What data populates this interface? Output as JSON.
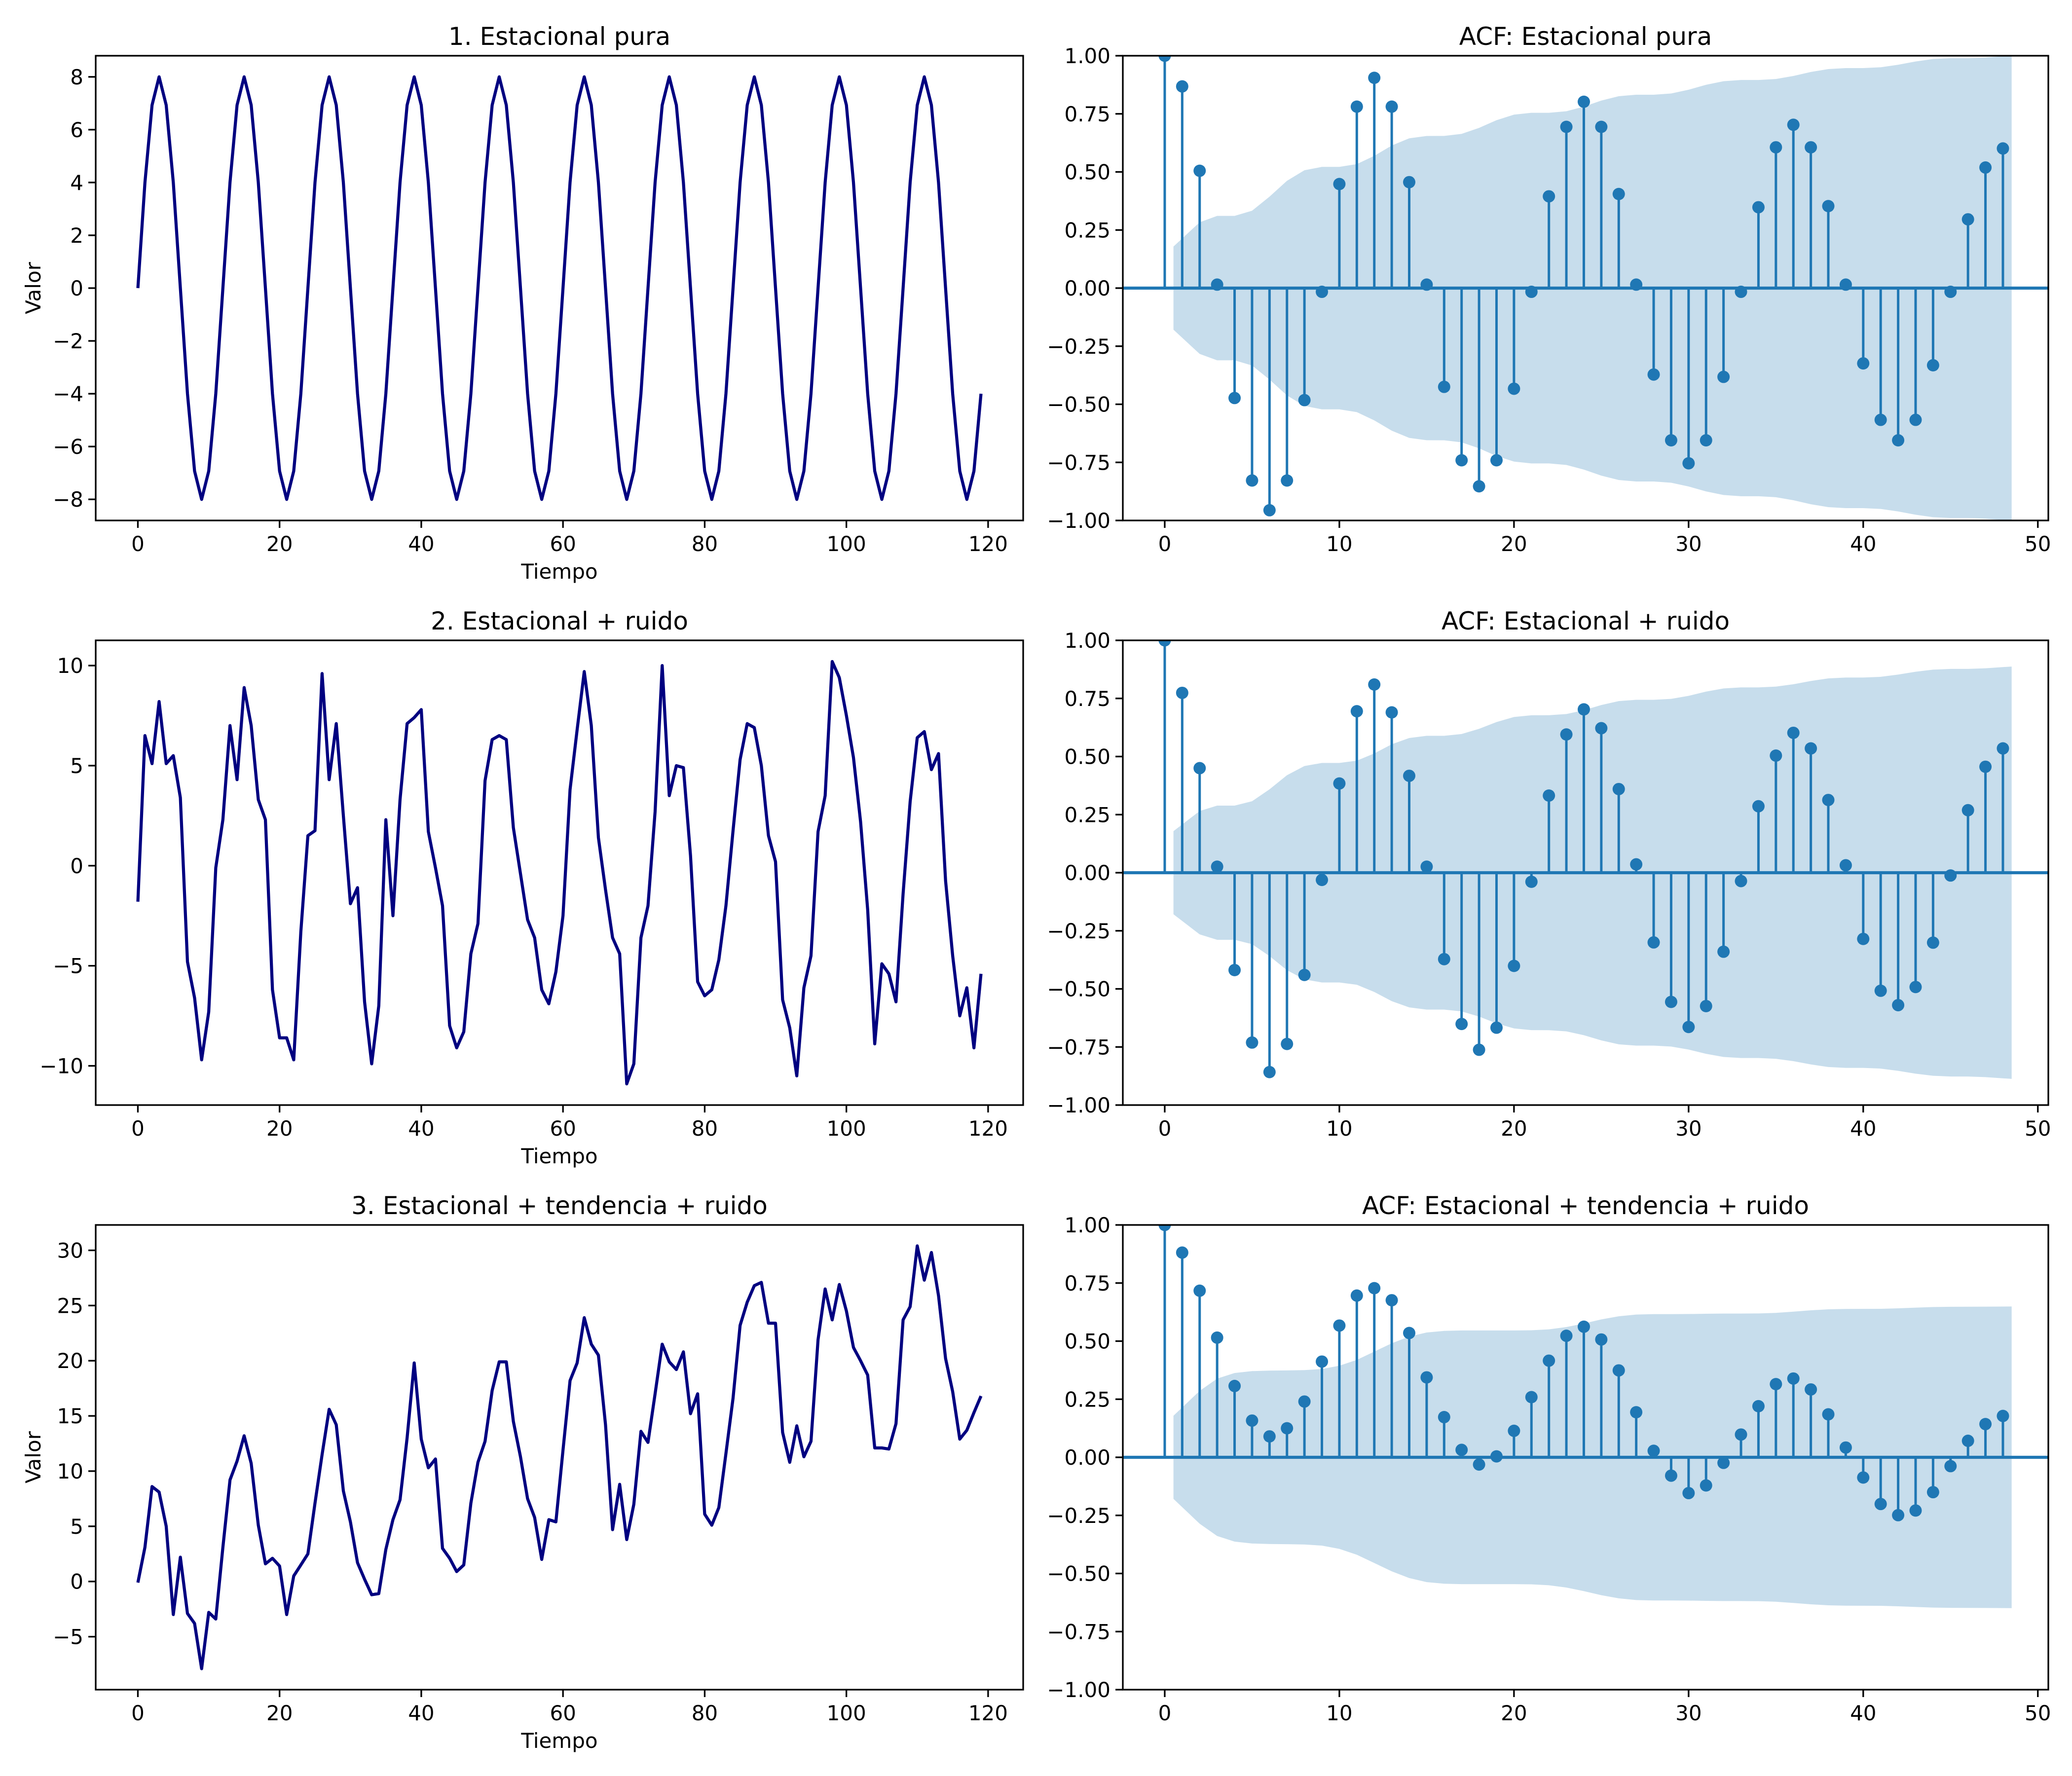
{
  "colors": {
    "series_line": "#000080",
    "acf": "#1f77b4",
    "band": "#1f77b4"
  },
  "chart_data": [
    {
      "type": "line",
      "title": "1. Estacional pura",
      "xlabel": "Tiempo",
      "ylabel": "Valor",
      "xlim": [
        -5.95,
        124.95
      ],
      "ylim": [
        -8.8,
        8.8
      ],
      "xticks": [
        0,
        20,
        40,
        60,
        80,
        100,
        120
      ],
      "xtick_labels": [
        "0",
        "20",
        "40",
        "60",
        "80",
        "100",
        "120"
      ],
      "yticks": [
        -8,
        -6,
        -4,
        -2,
        0,
        2,
        4,
        6,
        8
      ],
      "ytick_labels": [
        "−8",
        "−6",
        "−4",
        "−2",
        "0",
        "2",
        "4",
        "6",
        "8"
      ],
      "values": [
        0,
        4,
        6.93,
        8,
        6.93,
        4,
        0,
        -4,
        -6.93,
        -8,
        -6.93,
        -4,
        0,
        4,
        6.93,
        8,
        6.93,
        4,
        0,
        -4,
        -6.93,
        -8,
        -6.93,
        -4,
        0,
        4,
        6.93,
        8,
        6.93,
        4,
        0,
        -4,
        -6.93,
        -8,
        -6.93,
        -4,
        0,
        4,
        6.93,
        8,
        6.93,
        4,
        0,
        -4,
        -6.93,
        -8,
        -6.93,
        -4,
        0,
        4,
        6.93,
        8,
        6.93,
        4,
        0,
        -4,
        -6.93,
        -8,
        -6.93,
        -4,
        0,
        4,
        6.93,
        8,
        6.93,
        4,
        0,
        -4,
        -6.93,
        -8,
        -6.93,
        -4,
        0,
        4,
        6.93,
        8,
        6.93,
        4,
        0,
        -4,
        -6.93,
        -8,
        -6.93,
        -4,
        0,
        4,
        6.93,
        8,
        6.93,
        4,
        0,
        -4,
        -6.93,
        -8,
        -6.93,
        -4,
        0,
        4,
        6.93,
        8,
        6.93,
        4,
        0,
        -4,
        -6.93,
        -8,
        -6.93,
        -4,
        0,
        4,
        6.93,
        8,
        6.93,
        4,
        0,
        -4,
        -6.93,
        -8,
        -6.93,
        -4
      ]
    },
    {
      "type": "stem",
      "title": "ACF: Estacional pura",
      "xlabel": "",
      "ylabel": "",
      "xlim": [
        -2.4,
        50.6
      ],
      "ylim": [
        -1,
        1
      ],
      "xticks": [
        0,
        10,
        20,
        30,
        40,
        50
      ],
      "xtick_labels": [
        "0",
        "10",
        "20",
        "30",
        "40",
        "50"
      ],
      "yticks": [
        -1,
        -0.75,
        -0.5,
        -0.25,
        0,
        0.25,
        0.5,
        0.75,
        1
      ],
      "ytick_labels": [
        "−1.00",
        "−0.75",
        "−0.50",
        "−0.25",
        "0.00",
        "0.25",
        "0.50",
        "0.75",
        "1.00"
      ],
      "values": [
        1,
        0.868,
        0.505,
        0.015,
        -0.473,
        -0.828,
        -0.956,
        -0.828,
        -0.482,
        -0.016,
        0.448,
        0.781,
        0.905,
        0.781,
        0.456,
        0.015,
        -0.425,
        -0.741,
        -0.853,
        -0.741,
        -0.433,
        -0.016,
        0.395,
        0.694,
        0.802,
        0.694,
        0.405,
        0.015,
        -0.372,
        -0.655,
        -0.754,
        -0.655,
        -0.382,
        -0.016,
        0.348,
        0.606,
        0.703,
        0.606,
        0.353,
        0.015,
        -0.324,
        -0.567,
        -0.655,
        -0.567,
        -0.332,
        -0.016,
        0.296,
        0.519,
        0.601
      ]
    },
    {
      "type": "line",
      "title": "2. Estacional + ruido",
      "xlabel": "Tiempo",
      "ylabel": "",
      "xlim": [
        -5.95,
        124.95
      ],
      "ylim": [
        -11.96,
        11.26
      ],
      "xticks": [
        0,
        20,
        40,
        60,
        80,
        100,
        120
      ],
      "xtick_labels": [
        "0",
        "20",
        "40",
        "60",
        "80",
        "100",
        "120"
      ],
      "yticks": [
        -10,
        -5,
        0,
        5,
        10
      ],
      "ytick_labels": [
        "−10",
        "−5",
        "0",
        "5",
        "10"
      ],
      "values": [
        -1.8,
        6.5,
        5.1,
        8.2,
        5.1,
        5.5,
        3.4,
        -4.8,
        -6.6,
        -9.7,
        -7.3,
        -0.1,
        2.3,
        7.0,
        4.3,
        8.9,
        7.0,
        3.3,
        2.3,
        -6.2,
        -8.6,
        -8.6,
        -9.7,
        -3.3,
        1.5,
        1.75,
        9.6,
        4.3,
        7.1,
        2.5,
        -1.9,
        -1.1,
        -6.8,
        -9.9,
        -7.0,
        2.3,
        -2.5,
        3.3,
        7.1,
        7.4,
        7.8,
        1.7,
        -0.1,
        -2.0,
        -8.0,
        -9.1,
        -8.3,
        -4.4,
        -2.9,
        4.25,
        6.3,
        6.5,
        6.3,
        1.9,
        -0.4,
        -2.7,
        -3.6,
        -6.2,
        -6.9,
        -5.3,
        -2.5,
        3.8,
        6.8,
        9.7,
        7.0,
        1.4,
        -1.2,
        -3.6,
        -4.4,
        -10.9,
        -9.9,
        -3.6,
        -2.0,
        2.7,
        10.0,
        3.5,
        5.0,
        4.9,
        0.5,
        -5.8,
        -6.5,
        -6.2,
        -4.7,
        -2.0,
        1.75,
        5.3,
        7.1,
        6.9,
        5.0,
        1.5,
        0.2,
        -6.7,
        -8.1,
        -10.5,
        -6.1,
        -4.5,
        1.7,
        3.5,
        10.2,
        9.4,
        7.5,
        5.4,
        2.2,
        -2.2,
        -8.9,
        -4.9,
        -5.4,
        -6.8,
        -1.4,
        3.2,
        6.4,
        6.7,
        4.8,
        5.6,
        -0.75,
        -4.5,
        -7.5,
        -6.1,
        -9.1,
        -5.4
      ]
    },
    {
      "type": "stem",
      "title": "ACF: Estacional + ruido",
      "xlabel": "",
      "ylabel": "",
      "xlim": [
        -2.4,
        50.6
      ],
      "ylim": [
        -1,
        1
      ],
      "xticks": [
        0,
        10,
        20,
        30,
        40,
        50
      ],
      "xtick_labels": [
        "0",
        "10",
        "20",
        "30",
        "40",
        "50"
      ],
      "yticks": [
        -1,
        -0.75,
        -0.5,
        -0.25,
        0,
        0.25,
        0.5,
        0.75,
        1
      ],
      "ytick_labels": [
        "−1.00",
        "−0.75",
        "−0.50",
        "−0.25",
        "0.00",
        "0.25",
        "0.50",
        "0.75",
        "1.00"
      ],
      "values": [
        1,
        0.774,
        0.45,
        0.026,
        -0.419,
        -0.731,
        -0.858,
        -0.737,
        -0.44,
        -0.031,
        0.384,
        0.695,
        0.81,
        0.69,
        0.417,
        0.026,
        -0.372,
        -0.651,
        -0.762,
        -0.667,
        -0.401,
        -0.039,
        0.332,
        0.595,
        0.703,
        0.622,
        0.36,
        0.036,
        -0.3,
        -0.556,
        -0.664,
        -0.574,
        -0.34,
        -0.036,
        0.286,
        0.504,
        0.602,
        0.535,
        0.313,
        0.032,
        -0.285,
        -0.508,
        -0.57,
        -0.492,
        -0.301,
        -0.012,
        0.269,
        0.456,
        0.535
      ]
    },
    {
      "type": "line",
      "title": "3. Estacional + tendencia + ruido",
      "xlabel": "Tiempo",
      "ylabel": "Valor",
      "xlim": [
        -5.95,
        124.95
      ],
      "ylim": [
        -9.8,
        32.3
      ],
      "xticks": [
        0,
        20,
        40,
        60,
        80,
        100,
        120
      ],
      "xtick_labels": [
        "0",
        "20",
        "40",
        "60",
        "80",
        "100",
        "120"
      ],
      "yticks": [
        -5,
        0,
        5,
        10,
        15,
        20,
        25,
        30
      ],
      "ytick_labels": [
        "−5",
        "0",
        "5",
        "10",
        "15",
        "20",
        "25",
        "30"
      ],
      "values": [
        -0.1,
        3.1,
        8.6,
        8.1,
        5.0,
        -3.0,
        2.2,
        -2.9,
        -3.8,
        -7.9,
        -2.8,
        -3.4,
        3.1,
        9.2,
        10.9,
        13.2,
        10.7,
        5.1,
        1.6,
        2.1,
        1.4,
        -3.0,
        0.5,
        1.5,
        2.5,
        7.1,
        11.5,
        15.6,
        14.2,
        8.2,
        5.4,
        1.7,
        0.2,
        -1.2,
        -1.1,
        2.9,
        5.6,
        7.4,
        13.0,
        19.8,
        12.9,
        10.3,
        11.1,
        3.0,
        2.1,
        0.9,
        1.5,
        7.1,
        10.8,
        12.7,
        17.3,
        19.9,
        19.9,
        14.5,
        11.3,
        7.5,
        5.8,
        2.0,
        5.6,
        5.4,
        11.9,
        18.2,
        19.8,
        23.9,
        21.5,
        20.5,
        14.2,
        4.7,
        8.8,
        3.8,
        7.0,
        13.6,
        12.6,
        17.0,
        21.5,
        19.9,
        19.2,
        20.8,
        15.2,
        17.0,
        6.1,
        5.1,
        6.7,
        11.6,
        16.6,
        23.2,
        25.3,
        26.8,
        27.1,
        23.4,
        23.4,
        13.5,
        10.8,
        14.1,
        11.3,
        12.7,
        21.9,
        26.5,
        23.7,
        26.9,
        24.5,
        21.2,
        20.0,
        18.7,
        12.1,
        12.1,
        12.0,
        14.3,
        23.7,
        24.9,
        30.4,
        27.3,
        29.8,
        25.9,
        20.2,
        17.2,
        12.9,
        13.7,
        15.3,
        16.8
      ]
    },
    {
      "type": "stem",
      "title": "ACF: Estacional + tendencia + ruido",
      "xlabel": "",
      "ylabel": "",
      "xlim": [
        -2.4,
        50.6
      ],
      "ylim": [
        -1,
        1
      ],
      "xticks": [
        0,
        10,
        20,
        30,
        40,
        50
      ],
      "xtick_labels": [
        "0",
        "10",
        "20",
        "30",
        "40",
        "50"
      ],
      "yticks": [
        -1,
        -0.75,
        -0.5,
        -0.25,
        0,
        0.25,
        0.5,
        0.75,
        1
      ],
      "ytick_labels": [
        "−1.00",
        "−0.75",
        "−0.50",
        "−0.25",
        "0.00",
        "0.25",
        "0.50",
        "0.75",
        "1.00"
      ],
      "values": [
        1,
        0.881,
        0.717,
        0.515,
        0.307,
        0.158,
        0.09,
        0.125,
        0.24,
        0.412,
        0.567,
        0.696,
        0.728,
        0.676,
        0.535,
        0.344,
        0.173,
        0.032,
        -0.031,
        0.004,
        0.114,
        0.259,
        0.416,
        0.523,
        0.562,
        0.507,
        0.374,
        0.194,
        0.028,
        -0.079,
        -0.154,
        -0.121,
        -0.024,
        0.098,
        0.22,
        0.315,
        0.339,
        0.292,
        0.185,
        0.042,
        -0.087,
        -0.201,
        -0.249,
        -0.229,
        -0.15,
        -0.038,
        0.071,
        0.143,
        0.178
      ]
    }
  ]
}
